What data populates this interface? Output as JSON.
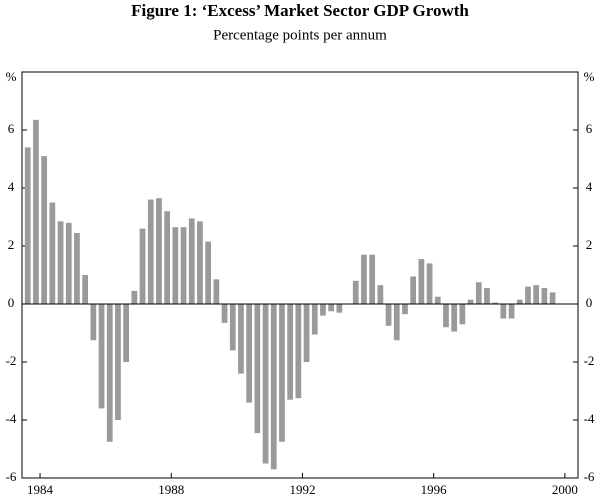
{
  "chart_data": {
    "type": "bar",
    "title": "Figure 1: ‘Excess’ Market Sector GDP Growth",
    "subtitle": "Percentage points per annum",
    "y_unit": "%",
    "x": [
      1983.625,
      1983.875,
      1984.125,
      1984.375,
      1984.625,
      1984.875,
      1985.125,
      1985.375,
      1985.625,
      1985.875,
      1986.125,
      1986.375,
      1986.625,
      1986.875,
      1987.125,
      1987.375,
      1987.625,
      1987.875,
      1988.125,
      1988.375,
      1988.625,
      1988.875,
      1989.125,
      1989.375,
      1989.625,
      1989.875,
      1990.125,
      1990.375,
      1990.625,
      1990.875,
      1991.125,
      1991.375,
      1991.625,
      1991.875,
      1992.125,
      1992.375,
      1992.625,
      1992.875,
      1993.125,
      1993.375,
      1993.625,
      1993.875,
      1994.125,
      1994.375,
      1994.625,
      1994.875,
      1995.125,
      1995.375,
      1995.625,
      1995.875,
      1996.125,
      1996.375,
      1996.625,
      1996.875,
      1997.125,
      1997.375,
      1997.625,
      1997.875,
      1998.125,
      1998.375,
      1998.625,
      1998.875,
      1999.125,
      1999.375,
      1999.625
    ],
    "values": [
      5.4,
      6.35,
      5.1,
      3.5,
      2.85,
      2.8,
      2.45,
      1.0,
      -1.25,
      -3.6,
      -4.75,
      -4.0,
      -2.0,
      0.45,
      2.6,
      3.6,
      3.65,
      3.2,
      2.65,
      2.65,
      2.95,
      2.85,
      2.15,
      0.85,
      -0.65,
      -1.6,
      -2.4,
      -3.4,
      -4.45,
      -5.5,
      -5.7,
      -4.75,
      -3.3,
      -3.25,
      -2.0,
      -1.05,
      -0.4,
      -0.25,
      -0.3,
      0.0,
      0.8,
      1.7,
      1.7,
      0.65,
      -0.75,
      -1.25,
      -0.35,
      0.95,
      1.55,
      1.4,
      0.25,
      -0.8,
      -0.95,
      -0.7,
      0.15,
      0.75,
      0.55,
      0.05,
      -0.5,
      -0.5,
      0.15,
      0.6,
      0.65,
      0.55,
      0.4
    ],
    "color": "#9a9a9a",
    "xlim": [
      1983.45,
      2000.4
    ],
    "xticks": [
      1984,
      1988,
      1992,
      1996,
      2000
    ],
    "ylim": [
      -6,
      8
    ],
    "yticks": [
      -6,
      -4,
      -2,
      0,
      2,
      4,
      6
    ]
  }
}
